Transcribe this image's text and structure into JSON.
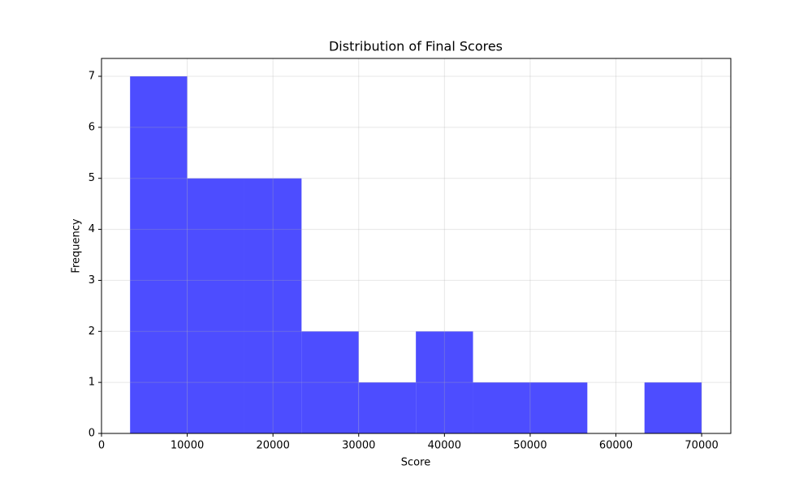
{
  "chart_data": {
    "type": "histogram",
    "title": "Distribution of Final Scores",
    "x_label": "Score",
    "y_label": "Frequency",
    "bins": [
      3333,
      10000,
      16667,
      23333,
      30000,
      36667,
      43333,
      50000,
      56667,
      63333,
      70000
    ],
    "values": [
      7,
      5,
      5,
      2,
      1,
      2,
      1,
      1,
      0,
      1
    ],
    "color": "#4d4dff",
    "xlim": [
      0,
      73400
    ],
    "ylim": [
      0,
      7.35
    ],
    "xticks": [
      0,
      10000,
      20000,
      30000,
      40000,
      50000,
      60000,
      70000
    ],
    "yticks": [
      0,
      1,
      2,
      3,
      4,
      5,
      6,
      7
    ],
    "grid": true
  }
}
